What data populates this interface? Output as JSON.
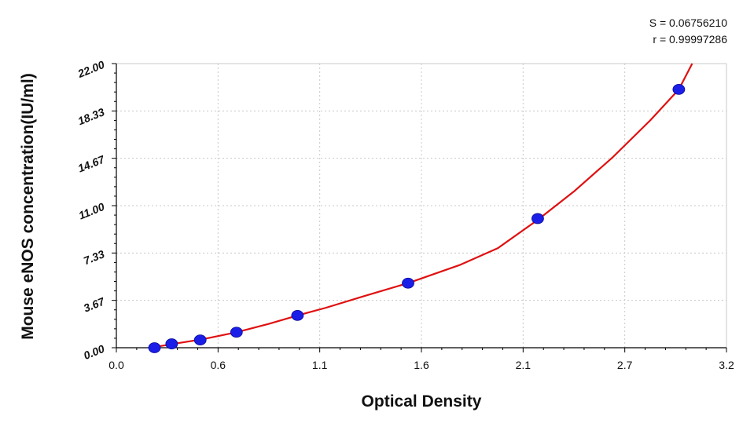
{
  "chart_data": {
    "type": "scatter",
    "xlabel": "Optical Density",
    "ylabel": "Mouse eNOS concentration(IU/ml)",
    "xlim": [
      0.0,
      3.2
    ],
    "ylim": [
      0.0,
      22.0
    ],
    "x_ticks": [
      "0.0",
      "0.6",
      "1.1",
      "1.6",
      "2.1",
      "2.7",
      "3.2"
    ],
    "y_ticks": [
      "0.00",
      "3.67",
      "7.33",
      "11.00",
      "14.67",
      "18.33",
      "22.00"
    ],
    "grid": true,
    "series": [
      {
        "type": "scatter",
        "x": [
          0.2,
          0.29,
          0.44,
          0.63,
          0.95,
          1.53,
          2.21,
          2.95
        ],
        "y": [
          0.0,
          0.3,
          0.6,
          1.2,
          2.5,
          5.0,
          10.0,
          20.0
        ]
      },
      {
        "type": "line",
        "x": [
          0.18,
          0.3,
          0.45,
          0.63,
          0.8,
          0.95,
          1.1,
          1.3,
          1.53,
          1.8,
          2.0,
          2.21,
          2.4,
          2.6,
          2.8,
          2.95,
          3.02
        ],
        "y": [
          0.0,
          0.3,
          0.65,
          1.2,
          1.85,
          2.5,
          3.1,
          4.0,
          5.0,
          6.4,
          7.7,
          9.9,
          12.1,
          14.7,
          17.6,
          20.0,
          22.0
        ]
      }
    ],
    "colors": {
      "points": "#1a1ee6",
      "curve": "#e01010",
      "grid": "#c8c8c8",
      "axis": "#000000"
    }
  },
  "stats": {
    "s": "S = 0.06756210",
    "r": "r = 0.99997286"
  }
}
